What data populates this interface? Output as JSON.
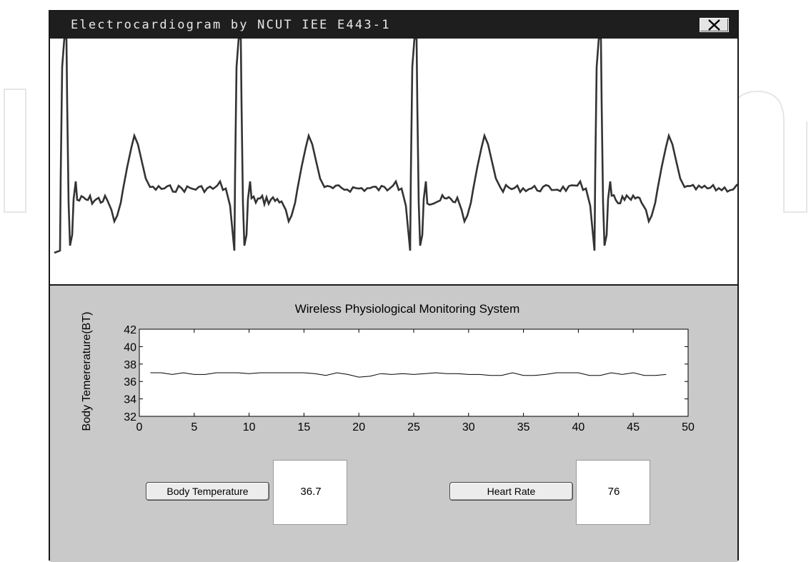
{
  "window": {
    "title": "Electrocardiogram by NCUT IEE E443-1",
    "close_icon": "close-x-icon"
  },
  "ecg_waveform": {
    "beats": 4,
    "color": "#333333"
  },
  "chart_data": {
    "type": "line",
    "title": "Wireless Physiological Monitoring System",
    "xlabel": "",
    "ylabel": "Body Temererature(BT)",
    "xlim": [
      0,
      50
    ],
    "ylim": [
      32,
      42
    ],
    "xticks": [
      0,
      5,
      10,
      15,
      20,
      25,
      30,
      35,
      40,
      45,
      50
    ],
    "yticks": [
      32,
      34,
      36,
      38,
      40,
      42
    ],
    "grid": false,
    "series": [
      {
        "name": "",
        "x": [
          1,
          2,
          3,
          4,
          5,
          6,
          7,
          8,
          9,
          10,
          11,
          12,
          13,
          14,
          15,
          16,
          17,
          18,
          19,
          20,
          21,
          22,
          23,
          24,
          25,
          26,
          27,
          28,
          29,
          30,
          31,
          32,
          33,
          34,
          35,
          36,
          37,
          38,
          39,
          40,
          41,
          42,
          43,
          44,
          45,
          46,
          47,
          48
        ],
        "y": [
          37.0,
          37.0,
          36.8,
          37.0,
          36.8,
          36.8,
          37.0,
          37.0,
          37.0,
          36.9,
          37.0,
          37.0,
          37.0,
          37.0,
          37.0,
          36.9,
          36.7,
          37.0,
          36.8,
          36.5,
          36.6,
          36.9,
          36.8,
          36.9,
          36.8,
          36.9,
          37.0,
          36.9,
          36.9,
          36.8,
          36.8,
          36.7,
          36.7,
          37.0,
          36.7,
          36.7,
          36.8,
          37.0,
          37.0,
          37.0,
          36.7,
          36.7,
          37.0,
          36.8,
          37.0,
          36.7,
          36.7,
          36.8
        ]
      }
    ]
  },
  "controls": {
    "body_temperature_label": "Body Temperature",
    "body_temperature_value": "36.7",
    "heart_rate_label": "Heart Rate",
    "heart_rate_value": "76"
  }
}
